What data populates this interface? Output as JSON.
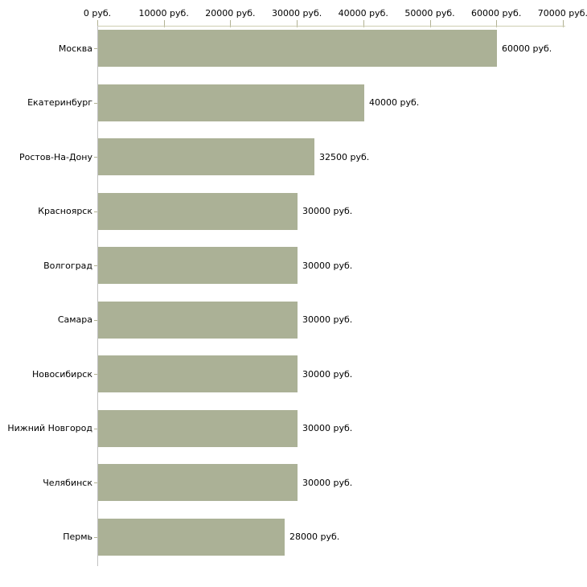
{
  "chart_data": {
    "type": "bar",
    "orientation": "horizontal",
    "title": "",
    "categories": [
      "Москва",
      "Екатеринбург",
      "Ростов-На-Дону",
      "Красноярск",
      "Волгоград",
      "Самара",
      "Новосибирск",
      "Нижний Новгород",
      "Челябинск",
      "Пермь"
    ],
    "values": [
      60000,
      40000,
      32500,
      30000,
      30000,
      30000,
      30000,
      30000,
      30000,
      28000
    ],
    "value_labels": [
      "60000 руб.",
      "40000 руб.",
      "32500 руб.",
      "30000 руб.",
      "30000 руб.",
      "30000 руб.",
      "30000 руб.",
      "30000 руб.",
      "30000 руб.",
      "28000 руб."
    ],
    "unit": "руб.",
    "xlabel": "",
    "ylabel": "",
    "x_axis": {
      "position": "top",
      "range": [
        0,
        70000
      ],
      "tick_values": [
        0,
        10000,
        20000,
        30000,
        40000,
        50000,
        60000,
        70000
      ],
      "tick_labels": [
        "0 руб.",
        "10000 руб.",
        "20000 руб.",
        "30000 руб.",
        "40000 руб.",
        "50000 руб.",
        "60000 руб.",
        "70000 руб."
      ]
    },
    "grid": false,
    "legend": false,
    "colors": {
      "bar_fill": "#abb196",
      "h_axis_line": "#cdcdb1",
      "v_axis_line": "#c2c2c2",
      "tick": "#b2b294",
      "text": "#000000",
      "background": "#ffffff"
    }
  }
}
